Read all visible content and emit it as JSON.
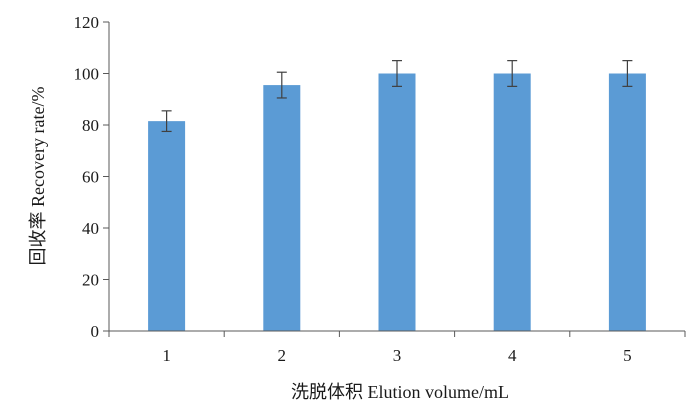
{
  "chart_data": {
    "type": "bar",
    "categories": [
      "1",
      "2",
      "3",
      "4",
      "5"
    ],
    "values": [
      81.5,
      95.5,
      100,
      100,
      100
    ],
    "errors": [
      4,
      5,
      5,
      5,
      5
    ],
    "xlabel": "洗脱体积  Elution volume/mL",
    "ylabel": "回收率  Recovery rate/%",
    "ylim": [
      0,
      120
    ],
    "yticks": [
      0,
      20,
      40,
      60,
      80,
      100,
      120
    ],
    "grid": false,
    "legend": "none",
    "bar_color": "#5b9bd5",
    "error_color": "#404040"
  }
}
